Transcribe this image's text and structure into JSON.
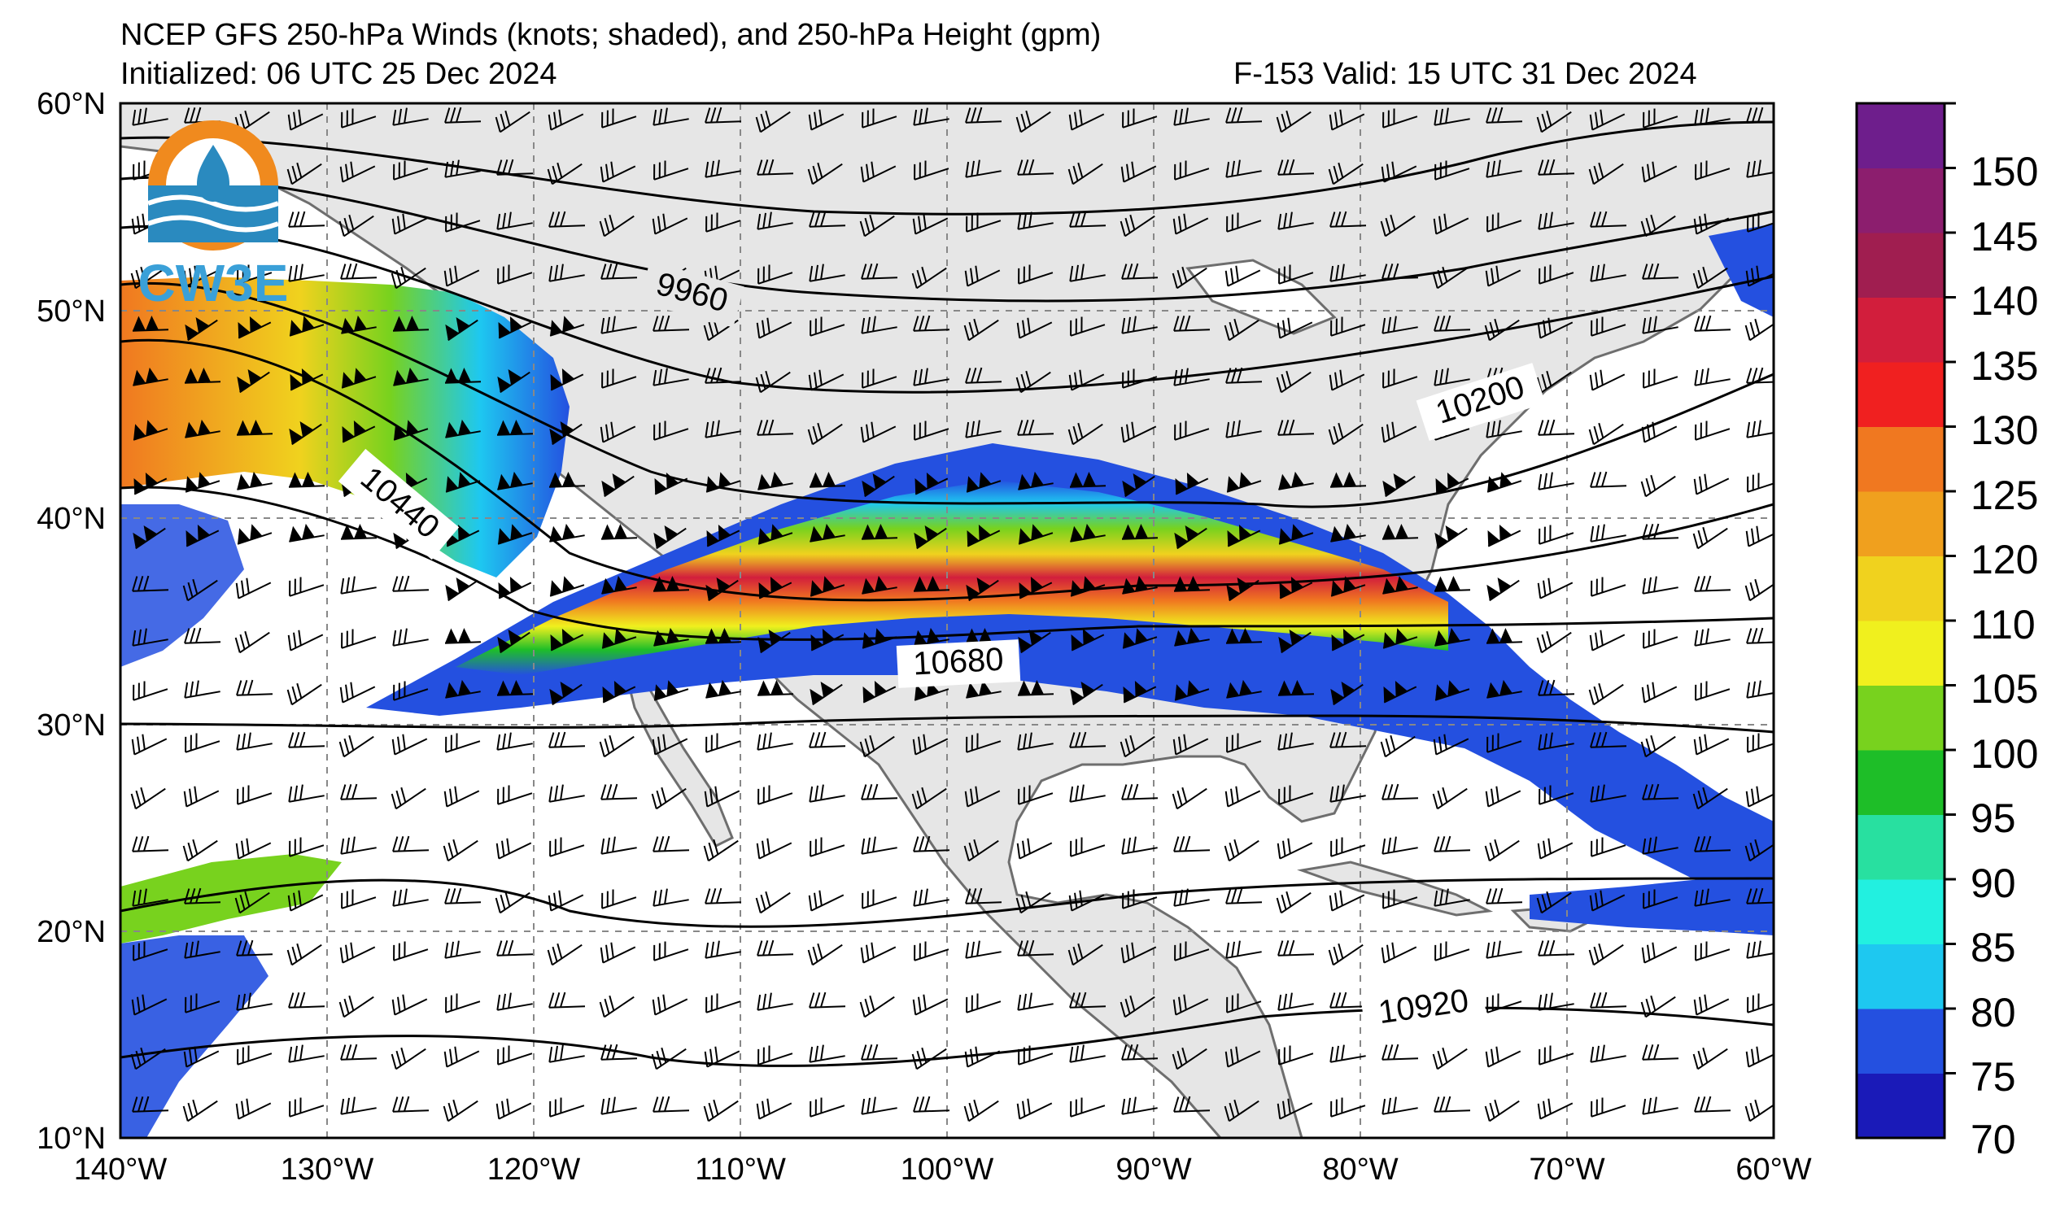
{
  "header": {
    "title": "NCEP GFS 250-hPa Winds (knots; shaded), and 250-hPa Height (gpm)",
    "initialized": "Initialized: 06 UTC 25 Dec 2024",
    "valid": "F-153  Valid: 15 UTC 31 Dec 2024"
  },
  "logo": {
    "text": "CW3E"
  },
  "axes": {
    "lat_labels": [
      "60°N",
      "50°N",
      "40°N",
      "30°N",
      "20°N",
      "10°N"
    ],
    "lon_labels": [
      "140°W",
      "130°W",
      "120°W",
      "110°W",
      "100°W",
      "90°W",
      "80°W",
      "70°W",
      "60°W"
    ]
  },
  "contour_labels": [
    {
      "text": "9960"
    },
    {
      "text": "10200"
    },
    {
      "text": "10440"
    },
    {
      "text": "10680"
    },
    {
      "text": "10920"
    }
  ],
  "colorbar": {
    "labels": [
      "150",
      "145",
      "140",
      "135",
      "130",
      "125",
      "120",
      "110",
      "105",
      "100",
      "95",
      "90",
      "85",
      "80",
      "75",
      "70"
    ],
    "colors": [
      "#1a1ab8",
      "#2450e0",
      "#1ec8f0",
      "#22f0e0",
      "#28e0a0",
      "#1ebe28",
      "#78d21e",
      "#f0f01e",
      "#f0d21e",
      "#f0a01e",
      "#f07820",
      "#f02020",
      "#d21e3c",
      "#a01e50",
      "#8c1e6e",
      "#6e1e8c"
    ]
  }
}
